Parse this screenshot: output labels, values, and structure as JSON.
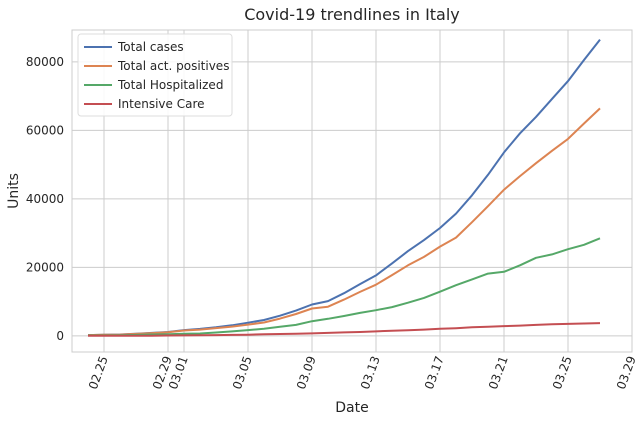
{
  "chart_data": {
    "type": "line",
    "title": "Covid-19 trendlines in Italy",
    "xlabel": "Date",
    "ylabel": "Units",
    "x": [
      "02.24",
      "02.25",
      "02.26",
      "02.27",
      "02.28",
      "02.29",
      "03.01",
      "03.02",
      "03.03",
      "03.04",
      "03.05",
      "03.06",
      "03.07",
      "03.08",
      "03.09",
      "03.10",
      "03.11",
      "03.12",
      "03.13",
      "03.14",
      "03.15",
      "03.16",
      "03.17",
      "03.18",
      "03.19",
      "03.20",
      "03.21",
      "03.22",
      "03.23",
      "03.24",
      "03.25",
      "03.26",
      "03.27"
    ],
    "series": [
      {
        "name": "Total cases",
        "color": "#4c72b0",
        "values": [
          229,
          322,
          400,
          650,
          888,
          1128,
          1694,
          2036,
          2502,
          3089,
          3858,
          4636,
          5883,
          7375,
          9172,
          10149,
          12462,
          15113,
          17660,
          21157,
          24747,
          27980,
          31506,
          35713,
          41035,
          47021,
          53578,
          59138,
          63927,
          69176,
          74386,
          80539,
          86498
        ]
      },
      {
        "name": "Total act. positives",
        "color": "#dd8452",
        "values": [
          221,
          311,
          385,
          588,
          821,
          1049,
          1577,
          1835,
          2263,
          2706,
          3296,
          3916,
          5061,
          6387,
          7985,
          8514,
          10590,
          12839,
          14955,
          17750,
          20603,
          23073,
          26062,
          28710,
          33190,
          37860,
          42681,
          46638,
          50418,
          54030,
          57521,
          62013,
          66414
        ]
      },
      {
        "name": "Total Hospitalized",
        "color": "#55a868",
        "values": [
          150,
          160,
          180,
          300,
          400,
          500,
          640,
          700,
          1000,
          1300,
          1700,
          2100,
          2700,
          3200,
          4300,
          5000,
          5800,
          6700,
          7500,
          8400,
          9700,
          11100,
          12900,
          14800,
          16500,
          18200,
          18700,
          20600,
          22800,
          23800,
          25300,
          26600,
          28500
        ]
      },
      {
        "name": "Intensive Care",
        "color": "#c44e52",
        "values": [
          26,
          35,
          36,
          56,
          64,
          105,
          140,
          166,
          229,
          295,
          351,
          462,
          567,
          650,
          733,
          877,
          1028,
          1153,
          1328,
          1518,
          1672,
          1851,
          2060,
          2257,
          2498,
          2655,
          2857,
          3009,
          3204,
          3396,
          3489,
          3612,
          3732
        ]
      }
    ],
    "xlim": [
      "02.23",
      "03.29"
    ],
    "xticks": [
      "02.25",
      "02.29",
      "03.01",
      "03.05",
      "03.09",
      "03.13",
      "03.17",
      "03.21",
      "03.25",
      "03.29"
    ],
    "ylim": [
      -4700,
      89300
    ],
    "yticks": [
      0,
      20000,
      40000,
      60000,
      80000
    ],
    "grid": true,
    "legend": "upper left"
  }
}
